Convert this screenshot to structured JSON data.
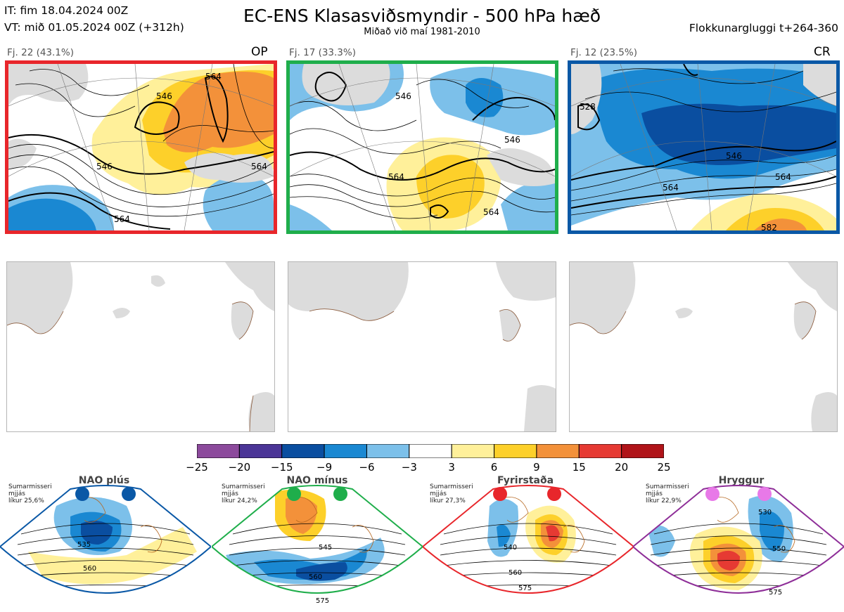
{
  "header": {
    "it_line": "IT: fim 18.04.2024 00Z",
    "vt_line": "VT: mið 01.05.2024 00Z  (+312h)",
    "title": "EC-ENS Klasasviðsmyndir - 500 hPa hæð",
    "subtitle": "Miðað við maí 1981-2010",
    "window": "Flokkunargluggi t+264-360"
  },
  "clusters": [
    {
      "label": "Fj. 22 (43.1%)",
      "tag": "OP",
      "border_color": "#e8262b",
      "contour_labels": [
        "546",
        "564",
        "546",
        "564",
        "564"
      ]
    },
    {
      "label": "Fj. 17 (33.3%)",
      "tag": "",
      "border_color": "#1fae4b",
      "contour_labels": [
        "546",
        "546",
        "564",
        "564"
      ]
    },
    {
      "label": "Fj. 12 (23.5%)",
      "tag": "CR",
      "border_color": "#0a58a6",
      "contour_labels": [
        "528",
        "546",
        "564",
        "564",
        "582"
      ]
    }
  ],
  "colorbar": {
    "ticks": [
      "−25",
      "−20",
      "−15",
      "−9",
      "−6",
      "−3",
      "3",
      "6",
      "9",
      "15",
      "20",
      "25"
    ],
    "colors": [
      "#8c4a9c",
      "#4b3597",
      "#0a4ea0",
      "#1a88d2",
      "#7cc0ea",
      "#ffffff",
      "#fff09a",
      "#fdd02a",
      "#f3913a",
      "#e63a33",
      "#b01419"
    ]
  },
  "chart_data": {
    "type": "heatmap",
    "title": "EC-ENS Klasasviðsmyndir - 500 hPa hæð",
    "subtitle": "Miðað við maí 1981-2010",
    "colorbar_ticks": [
      -25,
      -20,
      -15,
      -9,
      -6,
      -3,
      3,
      6,
      9,
      15,
      20,
      25
    ],
    "clusters": [
      {
        "name": "Fj. 22",
        "members": 22,
        "probability_pct": 43.1,
        "tag": "OP"
      },
      {
        "name": "Fj. 17",
        "members": 17,
        "probability_pct": 33.3,
        "tag": ""
      },
      {
        "name": "Fj. 12",
        "members": 12,
        "probability_pct": 23.5,
        "tag": "CR"
      }
    ],
    "regimes": [
      {
        "name": "NAO plús",
        "probability_pct": 25.6
      },
      {
        "name": "NAO mínus",
        "probability_pct": 24.2
      },
      {
        "name": "Fyrirstaða",
        "probability_pct": 27.3
      },
      {
        "name": "Hryggur",
        "probability_pct": 22.9
      }
    ]
  },
  "regimes": [
    {
      "name": "NAO plús",
      "note1": "Sumarmisseri",
      "note2": "mjjás",
      "note3": "líkur 25,6%",
      "color": "#0a58a6",
      "contour_labels": [
        "535",
        "560"
      ]
    },
    {
      "name": "NAO mínus",
      "note1": "Sumarmisseri",
      "note2": "mjjás",
      "note3": "líkur 24,2%",
      "color": "#1fae4b",
      "contour_labels": [
        "545",
        "560",
        "575"
      ]
    },
    {
      "name": "Fyrirstaða",
      "note1": "Sumarmisseri",
      "note2": "mjjás",
      "note3": "líkur 27,3%",
      "color": "#e8262b",
      "contour_labels": [
        "540",
        "560",
        "575"
      ]
    },
    {
      "name": "Hryggur",
      "note1": "Sumarmisseri",
      "note2": "mjjás",
      "note3": "líkur 22,9%",
      "color": "#8e2e98",
      "contour_labels": [
        "530",
        "550",
        "575"
      ]
    }
  ]
}
